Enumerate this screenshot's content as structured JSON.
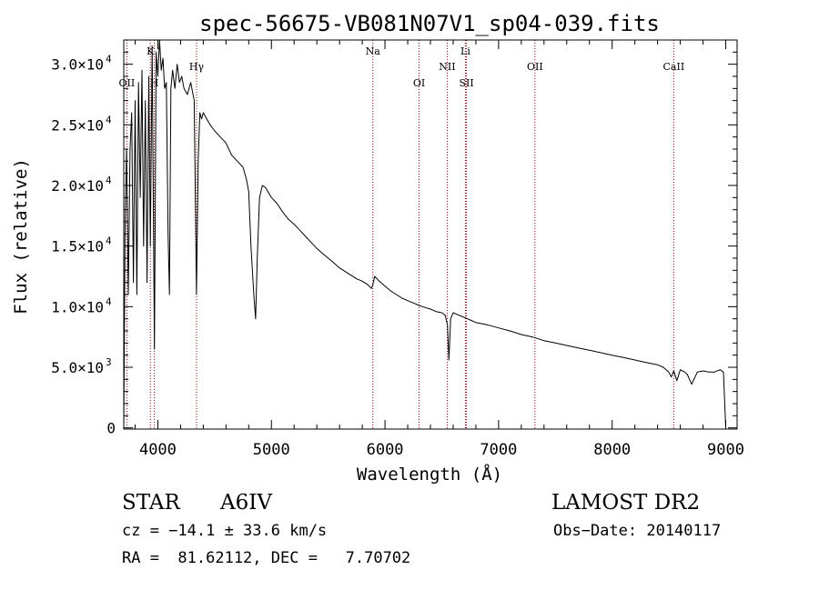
{
  "chart_data": {
    "type": "line",
    "title": "spec-56675-VB081N07V1_sp04-039.fits",
    "xlabel": "Wavelength (Å)",
    "ylabel": "Flux (relative)",
    "xlim": [
      3700,
      9100
    ],
    "ylim": [
      -100,
      32000
    ],
    "x_ticks": [
      {
        "value": 4000,
        "label": "4000"
      },
      {
        "value": 5000,
        "label": "5000"
      },
      {
        "value": 6000,
        "label": "6000"
      },
      {
        "value": 7000,
        "label": "7000"
      },
      {
        "value": 8000,
        "label": "8000"
      },
      {
        "value": 9000,
        "label": "9000"
      }
    ],
    "y_ticks": [
      {
        "value": 0,
        "mantissa": "0",
        "exp": ""
      },
      {
        "value": 5000,
        "mantissa": "5.0×10",
        "exp": "3"
      },
      {
        "value": 10000,
        "mantissa": "1.0×10",
        "exp": "4"
      },
      {
        "value": 15000,
        "mantissa": "1.5×10",
        "exp": "4"
      },
      {
        "value": 20000,
        "mantissa": "2.0×10",
        "exp": "4"
      },
      {
        "value": 25000,
        "mantissa": "2.5×10",
        "exp": "4"
      },
      {
        "value": 30000,
        "mantissa": "3.0×10",
        "exp": "4"
      }
    ],
    "lines": [
      {
        "name": "OII",
        "wavelength": 3727,
        "row": 2
      },
      {
        "name": "K",
        "wavelength": 3934,
        "row": 0
      },
      {
        "name": "H",
        "wavelength": 3969,
        "row": 2
      },
      {
        "name": "Hγ",
        "wavelength": 4341,
        "row": 1
      },
      {
        "name": "Na",
        "wavelength": 5893,
        "row": 0
      },
      {
        "name": "OI",
        "wavelength": 6300,
        "row": 2
      },
      {
        "name": "NII",
        "wavelength": 6548,
        "row": 1
      },
      {
        "name": "Li",
        "wavelength": 6708,
        "row": 0
      },
      {
        "name": "SII",
        "wavelength": 6717,
        "row": 2
      },
      {
        "name": "OII",
        "wavelength": 7320,
        "row": 1
      },
      {
        "name": "CaII",
        "wavelength": 8542,
        "row": 1
      }
    ],
    "x": [
      3700,
      3712,
      3725,
      3740,
      3755,
      3770,
      3785,
      3800,
      3815,
      3830,
      3845,
      3860,
      3875,
      3890,
      3905,
      3920,
      3934,
      3950,
      3970,
      3985,
      4000,
      4015,
      4030,
      4045,
      4060,
      4075,
      4090,
      4102,
      4115,
      4130,
      4150,
      4170,
      4190,
      4210,
      4230,
      4260,
      4290,
      4320,
      4340,
      4355,
      4370,
      4385,
      4400,
      4430,
      4460,
      4500,
      4550,
      4600,
      4650,
      4700,
      4750,
      4780,
      4800,
      4820,
      4845,
      4861,
      4875,
      4895,
      4920,
      4950,
      5000,
      5050,
      5100,
      5150,
      5200,
      5250,
      5300,
      5350,
      5400,
      5450,
      5500,
      5550,
      5600,
      5650,
      5700,
      5750,
      5800,
      5850,
      5880,
      5893,
      5910,
      5950,
      6000,
      6050,
      6100,
      6150,
      6200,
      6250,
      6300,
      6330,
      6400,
      6450,
      6500,
      6530,
      6550,
      6563,
      6578,
      6600,
      6650,
      6700,
      6750,
      6800,
      6900,
      7000,
      7100,
      7200,
      7300,
      7400,
      7500,
      7600,
      7700,
      7800,
      7900,
      8000,
      8100,
      8200,
      8300,
      8400,
      8450,
      8498,
      8520,
      8542,
      8570,
      8600,
      8640,
      8662,
      8700,
      8750,
      8800,
      8850,
      8900,
      8950,
      8980,
      9000
    ],
    "y": [
      0,
      17000,
      23000,
      11000,
      23000,
      26000,
      12000,
      27000,
      11000,
      28500,
      19000,
      29500,
      15000,
      27000,
      12000,
      29000,
      15000,
      31500,
      6500,
      31000,
      29000,
      32000,
      29500,
      30500,
      28000,
      28500,
      16000,
      11000,
      28000,
      29500,
      28000,
      30000,
      28500,
      29000,
      28000,
      27500,
      28500,
      27000,
      11000,
      22000,
      26000,
      25500,
      26000,
      25500,
      25000,
      24500,
      24000,
      23500,
      22500,
      22000,
      21500,
      20500,
      19500,
      15000,
      11000,
      9000,
      14000,
      19000,
      20000,
      19800,
      19000,
      18500,
      17800,
      17200,
      16800,
      16300,
      15800,
      15300,
      14800,
      14400,
      14000,
      13600,
      13200,
      12900,
      12600,
      12300,
      12100,
      11800,
      11500,
      11800,
      12500,
      12100,
      11700,
      11300,
      11000,
      10700,
      10500,
      10300,
      10100,
      10000,
      9800,
      9600,
      9500,
      9300,
      8500,
      5600,
      9000,
      9500,
      9300,
      9100,
      8900,
      8700,
      8500,
      8250,
      8000,
      7700,
      7500,
      7200,
      7000,
      6800,
      6600,
      6400,
      6200,
      6000,
      5800,
      5600,
      5400,
      5200,
      5000,
      4600,
      4200,
      4700,
      3900,
      4800,
      4600,
      4400,
      3600,
      4600,
      4700,
      4600,
      4600,
      4800,
      4600,
      0
    ]
  },
  "info": {
    "star": "STAR",
    "class": "A6IV",
    "survey": "LAMOST DR2",
    "cz": "cz = −14.1 ± 33.6 km/s",
    "obs_date": "Obs−Date: 20140117",
    "coords": "RA =  81.62112, DEC =   7.70702"
  }
}
